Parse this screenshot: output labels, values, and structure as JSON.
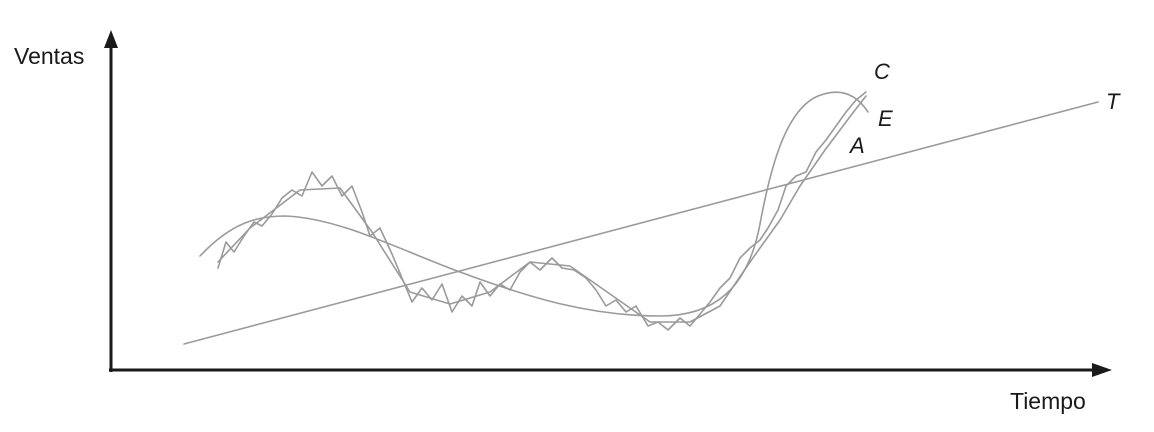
{
  "axes": {
    "y_label": "Ventas",
    "x_label": "Tiempo"
  },
  "curves": {
    "trend": {
      "label": "T",
      "color": "#9a9a9a"
    },
    "cycle": {
      "label": "C",
      "color": "#9a9a9a"
    },
    "seasonal": {
      "label": "E",
      "color": "#9a9a9a"
    },
    "actual": {
      "label": "A",
      "color": "#9a9a9a"
    }
  },
  "colors": {
    "axis": "#1a1a1a"
  }
}
